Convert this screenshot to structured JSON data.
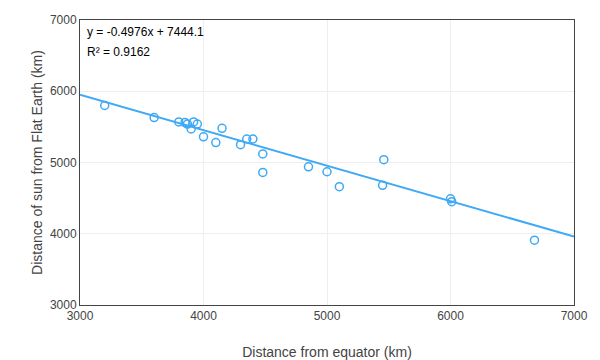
{
  "chart_data": {
    "type": "scatter",
    "xlabel": "Distance from equator (km)",
    "ylabel": "Distance of sun from Flat Earth (km)",
    "xlim": [
      3000,
      7000
    ],
    "ylim": [
      3000,
      7000
    ],
    "xticks": [
      3000,
      4000,
      5000,
      6000,
      7000
    ],
    "yticks": [
      3000,
      4000,
      5000,
      6000,
      7000
    ],
    "grid": true,
    "annotations": [
      "y = -0.4976x + 7444.1",
      "R² = 0.9162"
    ],
    "series": [
      {
        "type": "line",
        "color": "#3fa9f5",
        "line_style": "solid",
        "x": [
          3000,
          7000
        ],
        "values": [
          5951.3,
          3960.9
        ]
      },
      {
        "type": "scatter",
        "color": "#3fa9f5",
        "marker": "open circle",
        "x": [
          3200,
          3600,
          3800,
          3850,
          3870,
          3900,
          3920,
          3950,
          4000,
          4100,
          4150,
          4300,
          4350,
          4400,
          4480,
          4480,
          4850,
          5000,
          5100,
          5450,
          5460,
          6000,
          6010,
          6680
        ],
        "values": [
          5800,
          5630,
          5570,
          5560,
          5540,
          5470,
          5570,
          5540,
          5360,
          5280,
          5480,
          5250,
          5330,
          5330,
          5120,
          4860,
          4940,
          4870,
          4660,
          4680,
          5040,
          4490,
          4450,
          3910
        ]
      }
    ]
  }
}
